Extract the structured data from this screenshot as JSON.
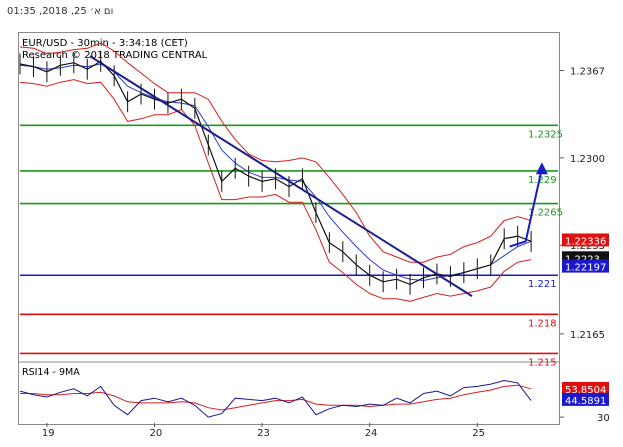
{
  "header": {
    "date_time": "ום א׳ 25, 2018, 01:35"
  },
  "chart_data": {
    "type": "line",
    "title": "EUR/USD - 30min - 3:34:18 (CET)",
    "subtitle": "Research © 2018 TRADING CENTRAL",
    "price_axis": {
      "ylim": [
        1.2145,
        1.2395
      ],
      "tick_labels": [
        "1.2367",
        "1.2300",
        "1.2233",
        "1.2165"
      ],
      "tick_values": [
        1.2367,
        1.23,
        1.2233,
        1.2165
      ]
    },
    "x_axis": {
      "day_labels": [
        "19",
        "20",
        "23",
        "24",
        "25"
      ],
      "day_positions": [
        0.5,
        2.5,
        4.5,
        6.5,
        8.5
      ]
    },
    "levels": [
      {
        "label": "1.2325",
        "value": 1.2325,
        "color": "#1a9a1a"
      },
      {
        "label": "1.229",
        "value": 1.229,
        "color": "#1a9a1a"
      },
      {
        "label": "1.2265",
        "value": 1.2265,
        "color": "#1a9a1a"
      },
      {
        "label": "1.221",
        "value": 1.221,
        "color": "#1a1acc"
      },
      {
        "label": "1.218",
        "value": 1.218,
        "color": "#dd1111"
      },
      {
        "label": "1.215",
        "value": 1.215,
        "color": "#dd1111"
      }
    ],
    "price_badges": [
      {
        "label": "1.22336",
        "value": 1.22336,
        "color": "#dd1111"
      },
      {
        "label": "1.2223",
        "value": 1.2223,
        "color": "#111111"
      },
      {
        "label": "1.22197",
        "value": 1.22197,
        "color": "#1a1acc"
      }
    ],
    "price_series": {
      "name": "EUR/USD",
      "x": [
        0,
        0.25,
        0.5,
        0.75,
        1.0,
        1.25,
        1.5,
        1.75,
        2.0,
        2.25,
        2.5,
        2.75,
        3.0,
        3.25,
        3.5,
        3.75,
        4.0,
        4.25,
        4.5,
        4.75,
        5.0,
        5.25,
        5.5,
        5.75,
        6.0,
        6.25,
        6.5,
        6.75,
        7.0,
        7.25,
        7.5,
        7.75,
        8.0,
        8.25,
        8.5,
        8.75,
        9.0,
        9.25,
        9.5
      ],
      "y": [
        1.2372,
        1.237,
        1.2366,
        1.2371,
        1.2373,
        1.2368,
        1.2374,
        1.2363,
        1.2343,
        1.2349,
        1.2345,
        1.2342,
        1.2345,
        1.2338,
        1.231,
        1.2282,
        1.2292,
        1.2286,
        1.2282,
        1.2284,
        1.2278,
        1.2284,
        1.2258,
        1.2235,
        1.2228,
        1.2218,
        1.221,
        1.2205,
        1.2207,
        1.2203,
        1.2208,
        1.2211,
        1.2209,
        1.2212,
        1.2215,
        1.2218,
        1.2238,
        1.224,
        1.2236
      ]
    },
    "bollinger_upper": [
      1.2385,
      1.2384,
      1.238,
      1.2381,
      1.2383,
      1.2384,
      1.2388,
      1.2382,
      1.2373,
      1.2365,
      1.2357,
      1.235,
      1.235,
      1.235,
      1.2345,
      1.2328,
      1.2314,
      1.2303,
      1.2298,
      1.2297,
      1.2298,
      1.23,
      1.2297,
      1.2285,
      1.2272,
      1.2258,
      1.224,
      1.2228,
      1.2224,
      1.222,
      1.222,
      1.2224,
      1.2226,
      1.2232,
      1.2235,
      1.224,
      1.2252,
      1.2255,
      1.2252
    ],
    "bollinger_lower": [
      1.2358,
      1.2357,
      1.2355,
      1.2358,
      1.236,
      1.2357,
      1.2358,
      1.2345,
      1.2328,
      1.233,
      1.2333,
      1.2333,
      1.2337,
      1.2325,
      1.2296,
      1.2268,
      1.2268,
      1.227,
      1.227,
      1.2272,
      1.2266,
      1.2266,
      1.2245,
      1.222,
      1.2212,
      1.2203,
      1.2196,
      1.2192,
      1.2192,
      1.219,
      1.2193,
      1.2196,
      1.2194,
      1.2196,
      1.2198,
      1.2201,
      1.2213,
      1.222,
      1.2222
    ],
    "moving_average": [
      1.2371,
      1.237,
      1.2368,
      1.2369,
      1.2371,
      1.237,
      1.2372,
      1.2366,
      1.2355,
      1.235,
      1.2346,
      1.2343,
      1.2342,
      1.234,
      1.2324,
      1.2306,
      1.2296,
      1.2289,
      1.2285,
      1.2285,
      1.2283,
      1.2282,
      1.227,
      1.2255,
      1.2243,
      1.2232,
      1.2222,
      1.2214,
      1.221,
      1.2207,
      1.2206,
      1.2208,
      1.221,
      1.2212,
      1.2215,
      1.2218,
      1.2225,
      1.2232,
      1.2236
    ],
    "trendline": {
      "x": [
        1.3,
        8.4
      ],
      "y": [
        1.2378,
        1.2194
      ]
    },
    "forecast_arrow": {
      "x": [
        9.1,
        9.4,
        9.7
      ],
      "y": [
        1.2232,
        1.2236,
        1.2292
      ]
    },
    "rsi_panel": {
      "label": "RSI14 - 9MA",
      "ylim": [
        25,
        75
      ],
      "tick_labels": [
        "30"
      ],
      "tick_values": [
        30
      ],
      "badges": [
        {
          "label": "53.8504",
          "value": 53.8504,
          "color": "#dd1111"
        },
        {
          "label": "44.5891",
          "value": 44.5891,
          "color": "#1a1acc"
        }
      ],
      "rsi": [
        52,
        49,
        47,
        51,
        54,
        48,
        56,
        40,
        32,
        44,
        46,
        43,
        46,
        40,
        30,
        33,
        46,
        45,
        44,
        46,
        42,
        47,
        32,
        37,
        40,
        39,
        41,
        40,
        46,
        42,
        50,
        52,
        48,
        55,
        56,
        58,
        61,
        59,
        44
      ],
      "ma": [
        50,
        50,
        49,
        49,
        50,
        50,
        51,
        48,
        43,
        42,
        42,
        42,
        43,
        42,
        38,
        36,
        38,
        40,
        42,
        44,
        44,
        45,
        41,
        40,
        40,
        40,
        39,
        40,
        41,
        41,
        43,
        45,
        46,
        49,
        51,
        53,
        56,
        57,
        54
      ]
    }
  }
}
